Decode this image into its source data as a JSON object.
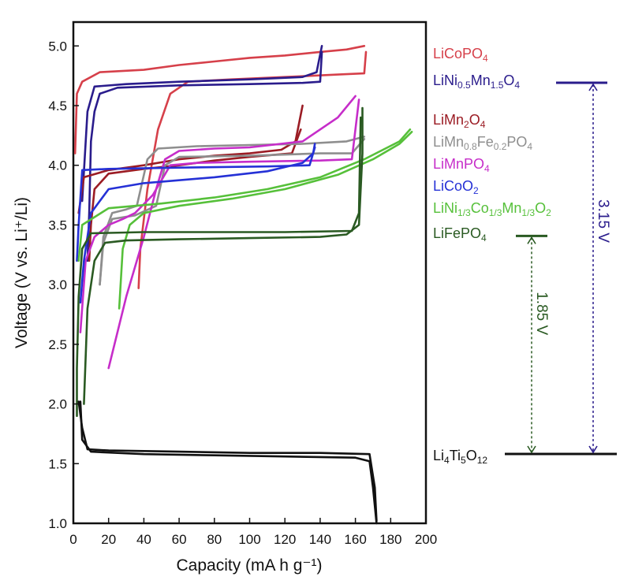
{
  "chart_data": {
    "type": "line",
    "title": "",
    "xlabel": "Capacity (mA h g⁻¹)",
    "ylabel": "Voltage (V vs. Li⁺/Li)",
    "xlim": [
      0,
      200
    ],
    "ylim": [
      1.0,
      5.2
    ],
    "x_ticks": [
      "0",
      "20",
      "40",
      "60",
      "80",
      "100",
      "120",
      "140",
      "160",
      "180",
      "200"
    ],
    "y_ticks": [
      "1.0",
      "1.5",
      "2.0",
      "2.5",
      "3.0",
      "3.5",
      "4.0",
      "4.5",
      "5.0"
    ],
    "grid": false,
    "series": [
      {
        "name": "LiCoPO4",
        "label_main": "LiCoPO",
        "label_sub": "4",
        "label_end": "",
        "color": "#d6404a",
        "charge": [
          [
            1,
            4.1
          ],
          [
            2,
            4.6
          ],
          [
            5,
            4.7
          ],
          [
            15,
            4.78
          ],
          [
            40,
            4.8
          ],
          [
            60,
            4.84
          ],
          [
            80,
            4.87
          ],
          [
            100,
            4.9
          ],
          [
            120,
            4.92
          ],
          [
            140,
            4.95
          ],
          [
            155,
            4.97
          ],
          [
            165,
            5.0
          ]
        ],
        "discharge": [
          [
            166,
            4.95
          ],
          [
            165,
            4.77
          ],
          [
            150,
            4.76
          ],
          [
            120,
            4.74
          ],
          [
            90,
            4.72
          ],
          [
            65,
            4.7
          ],
          [
            55,
            4.6
          ],
          [
            48,
            4.3
          ],
          [
            42,
            3.8
          ],
          [
            38,
            3.3
          ],
          [
            37,
            2.97
          ]
        ]
      },
      {
        "name": "LiNi0.5Mn1.5O4",
        "label_main": "LiNi",
        "label_sub": "0.5",
        "label_end": "Mn|1.5|O|4",
        "color": "#2a1c8c",
        "charge": [
          [
            5,
            3.7
          ],
          [
            8,
            4.45
          ],
          [
            12,
            4.66
          ],
          [
            30,
            4.68
          ],
          [
            60,
            4.7
          ],
          [
            100,
            4.72
          ],
          [
            130,
            4.74
          ],
          [
            138,
            4.78
          ],
          [
            141,
            5.0
          ]
        ],
        "discharge": [
          [
            141,
            4.95
          ],
          [
            140,
            4.7
          ],
          [
            130,
            4.69
          ],
          [
            100,
            4.68
          ],
          [
            60,
            4.67
          ],
          [
            25,
            4.65
          ],
          [
            15,
            4.6
          ],
          [
            12,
            4.45
          ],
          [
            10,
            4.2
          ],
          [
            9,
            3.6
          ],
          [
            8,
            3.2
          ]
        ]
      },
      {
        "name": "LiMn2O4",
        "label_main": "LiMn",
        "label_sub": "2",
        "label_end": "O|4",
        "color": "#9b1c24",
        "charge": [
          [
            3,
            3.6
          ],
          [
            6,
            3.9
          ],
          [
            20,
            3.96
          ],
          [
            40,
            4.0
          ],
          [
            60,
            4.05
          ],
          [
            80,
            4.08
          ],
          [
            100,
            4.1
          ],
          [
            118,
            4.13
          ],
          [
            126,
            4.2
          ],
          [
            130,
            4.5
          ]
        ],
        "discharge": [
          [
            129,
            4.3
          ],
          [
            124,
            4.1
          ],
          [
            100,
            4.07
          ],
          [
            80,
            4.04
          ],
          [
            60,
            4.0
          ],
          [
            40,
            3.97
          ],
          [
            20,
            3.93
          ],
          [
            12,
            3.8
          ],
          [
            10,
            3.5
          ],
          [
            9,
            3.2
          ]
        ]
      },
      {
        "name": "LiMn0.8Fe0.2PO4",
        "label_main": "LiMn",
        "label_sub": "0.8",
        "label_end": "Fe|0.2|PO|4",
        "color": "#8e8e8e",
        "charge": [
          [
            15,
            3.0
          ],
          [
            17,
            3.4
          ],
          [
            22,
            3.6
          ],
          [
            30,
            3.63
          ],
          [
            36,
            3.66
          ],
          [
            42,
            4.05
          ],
          [
            48,
            4.14
          ],
          [
            70,
            4.16
          ],
          [
            100,
            4.17
          ],
          [
            130,
            4.18
          ],
          [
            155,
            4.2
          ],
          [
            165,
            4.24
          ]
        ],
        "discharge": [
          [
            165,
            4.22
          ],
          [
            158,
            4.1
          ],
          [
            140,
            4.1
          ],
          [
            100,
            4.08
          ],
          [
            60,
            4.07
          ],
          [
            52,
            4.0
          ],
          [
            47,
            3.66
          ],
          [
            35,
            3.58
          ],
          [
            22,
            3.55
          ],
          [
            17,
            3.35
          ],
          [
            15,
            3.0
          ]
        ]
      },
      {
        "name": "LiMnPO4",
        "label_main": "LiMnPO",
        "label_sub": "4",
        "label_end": "",
        "color": "#c62dc9",
        "charge": [
          [
            20,
            2.3
          ],
          [
            30,
            2.9
          ],
          [
            40,
            3.4
          ],
          [
            47,
            3.8
          ],
          [
            52,
            4.05
          ],
          [
            60,
            4.12
          ],
          [
            80,
            4.14
          ],
          [
            100,
            4.15
          ],
          [
            130,
            4.2
          ],
          [
            150,
            4.4
          ],
          [
            160,
            4.58
          ]
        ],
        "discharge": [
          [
            162,
            4.55
          ],
          [
            158,
            4.05
          ],
          [
            140,
            4.04
          ],
          [
            100,
            4.03
          ],
          [
            70,
            4.02
          ],
          [
            55,
            4.0
          ],
          [
            45,
            3.75
          ],
          [
            35,
            3.6
          ],
          [
            28,
            3.55
          ],
          [
            20,
            3.5
          ],
          [
            12,
            3.4
          ],
          [
            7,
            3.2
          ],
          [
            4,
            2.6
          ]
        ]
      },
      {
        "name": "LiCoO2",
        "label_main": "LiCoO",
        "label_sub": "2",
        "label_end": "",
        "color": "#2531d6",
        "charge": [
          [
            4,
            2.85
          ],
          [
            6,
            3.2
          ],
          [
            10,
            3.6
          ],
          [
            20,
            3.8
          ],
          [
            40,
            3.85
          ],
          [
            80,
            3.9
          ],
          [
            110,
            3.95
          ],
          [
            130,
            4.02
          ],
          [
            136,
            4.1
          ],
          [
            137,
            4.18
          ]
        ],
        "discharge": [
          [
            137,
            4.15
          ],
          [
            134,
            4.0
          ],
          [
            110,
            3.99
          ],
          [
            60,
            3.98
          ],
          [
            20,
            3.97
          ],
          [
            5,
            3.96
          ],
          [
            3,
            3.5
          ],
          [
            2,
            3.2
          ]
        ]
      },
      {
        "name": "LiNi1/3Co1/3Mn1/3O2",
        "label_main": "LiNi",
        "label_sub": "1/3",
        "label_end": "Co|1/3|Mn|1/3|O|2",
        "color": "#56c03a",
        "charge": [
          [
            26,
            2.8
          ],
          [
            28,
            3.3
          ],
          [
            32,
            3.5
          ],
          [
            40,
            3.6
          ],
          [
            60,
            3.66
          ],
          [
            90,
            3.72
          ],
          [
            120,
            3.8
          ],
          [
            150,
            3.92
          ],
          [
            170,
            4.05
          ],
          [
            185,
            4.18
          ],
          [
            192,
            4.28
          ]
        ],
        "discharge": [
          [
            191,
            4.3
          ],
          [
            185,
            4.2
          ],
          [
            165,
            4.05
          ],
          [
            140,
            3.9
          ],
          [
            110,
            3.8
          ],
          [
            80,
            3.73
          ],
          [
            50,
            3.68
          ],
          [
            20,
            3.64
          ],
          [
            5,
            3.5
          ],
          [
            3,
            3.2
          ]
        ]
      },
      {
        "name": "LiFePO4",
        "label_main": "LiFePO",
        "label_sub": "4",
        "label_end": "",
        "color": "#2a5a22",
        "charge": [
          [
            6,
            2.0
          ],
          [
            8,
            2.8
          ],
          [
            12,
            3.2
          ],
          [
            18,
            3.35
          ],
          [
            30,
            3.37
          ],
          [
            60,
            3.38
          ],
          [
            100,
            3.39
          ],
          [
            140,
            3.4
          ],
          [
            155,
            3.42
          ],
          [
            162,
            3.5
          ],
          [
            164,
            4.1
          ],
          [
            164,
            4.48
          ]
        ],
        "discharge": [
          [
            163,
            4.4
          ],
          [
            162,
            3.6
          ],
          [
            158,
            3.45
          ],
          [
            120,
            3.44
          ],
          [
            80,
            3.44
          ],
          [
            40,
            3.44
          ],
          [
            10,
            3.43
          ],
          [
            5,
            3.3
          ],
          [
            3,
            2.9
          ],
          [
            2,
            2.3
          ],
          [
            2,
            1.9
          ]
        ]
      },
      {
        "name": "Li4Ti5O12",
        "label_main": "Li|4|Ti|5|O|12",
        "label_sub": "",
        "label_end": "",
        "color": "#111111",
        "charge": [
          [
            4,
            2.02
          ],
          [
            5,
            1.7
          ],
          [
            10,
            1.6
          ],
          [
            40,
            1.58
          ],
          [
            80,
            1.57
          ],
          [
            120,
            1.56
          ],
          [
            160,
            1.55
          ],
          [
            168,
            1.52
          ],
          [
            170,
            1.3
          ],
          [
            172,
            1.0
          ]
        ],
        "discharge": [
          [
            172,
            1.02
          ],
          [
            171,
            1.3
          ],
          [
            168,
            1.58
          ],
          [
            140,
            1.59
          ],
          [
            100,
            1.59
          ],
          [
            60,
            1.6
          ],
          [
            20,
            1.61
          ],
          [
            8,
            1.62
          ],
          [
            5,
            1.8
          ],
          [
            3,
            2.02
          ]
        ]
      }
    ],
    "levels": [
      {
        "name": "LiNi0.5Mn1.5O4",
        "voltage": 4.7,
        "color": "#2a1c8c"
      },
      {
        "name": "LiFePO4",
        "voltage": 3.4,
        "color": "#2a5a22"
      },
      {
        "name": "Li4Ti5O12",
        "voltage": 1.55,
        "color": "#111111"
      }
    ],
    "annotations": [
      {
        "text": "3.15 V",
        "from": 1.55,
        "to": 4.7,
        "color": "#2a1c8c"
      },
      {
        "text": "1.85 V",
        "from": 1.55,
        "to": 3.4,
        "color": "#2a5a22"
      }
    ]
  }
}
